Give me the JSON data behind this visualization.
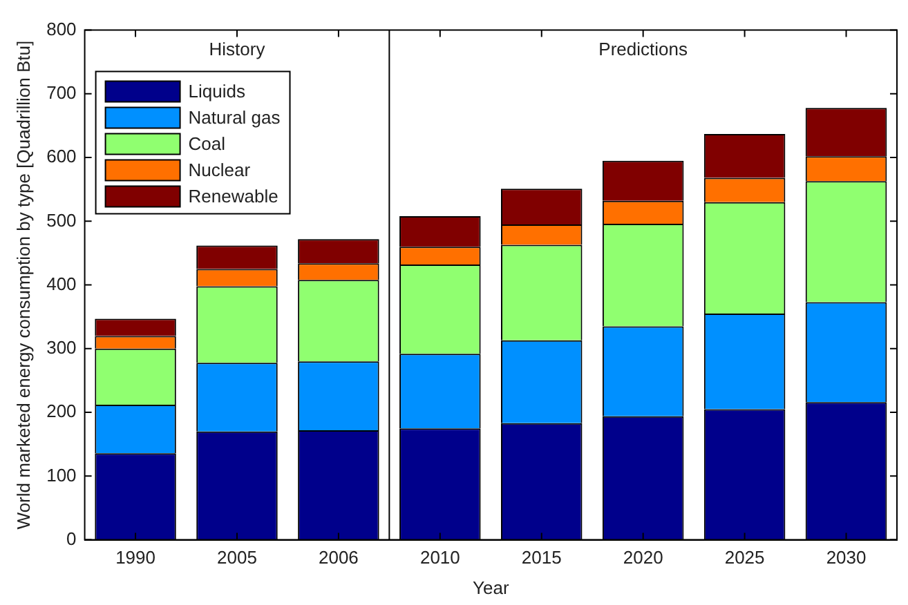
{
  "chart_data": {
    "type": "bar",
    "stacked": true,
    "xlabel": "Year",
    "ylabel": "World marketed energy consumption by type [Quadrillion Btu]",
    "categories": [
      "1990",
      "2005",
      "2006",
      "2010",
      "2015",
      "2020",
      "2025",
      "2030"
    ],
    "series": [
      {
        "name": "Liquids",
        "color": "#00008b",
        "values": [
          136,
          170,
          172,
          175,
          183,
          194,
          205,
          216
        ]
      },
      {
        "name": "Natural gas",
        "color": "#0090ff",
        "values": [
          76,
          108,
          108,
          117,
          130,
          141,
          150,
          157
        ]
      },
      {
        "name": "Coal",
        "color": "#90ff70",
        "values": [
          88,
          120,
          128,
          140,
          150,
          161,
          175,
          190
        ]
      },
      {
        "name": "Nuclear",
        "color": "#ff7000",
        "values": [
          20,
          27,
          26,
          28,
          32,
          36,
          38,
          39
        ]
      },
      {
        "name": "Renewable",
        "color": "#800000",
        "values": [
          27,
          37,
          38,
          48,
          56,
          63,
          69,
          76
        ]
      }
    ],
    "ylim": [
      0,
      800
    ],
    "yticks": [
      0,
      100,
      200,
      300,
      400,
      500,
      600,
      700,
      800
    ],
    "bands": [
      {
        "axis": "x",
        "from": "1990",
        "to": "2006",
        "label": "History",
        "color": "#ffffff"
      }
    ],
    "annotations": [
      "Predictions"
    ],
    "legend": "top left",
    "grid": false
  }
}
